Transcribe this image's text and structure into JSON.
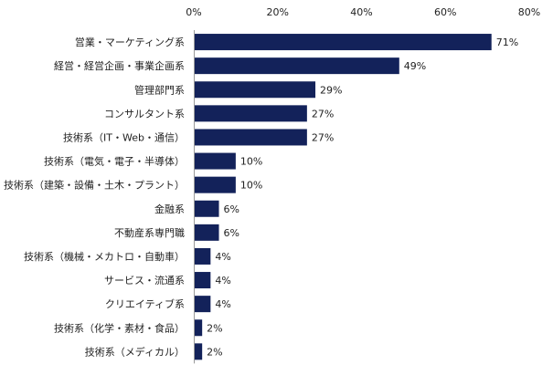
{
  "chart_data": {
    "type": "bar",
    "orientation": "horizontal",
    "title": "",
    "xlabel": "",
    "ylabel": "",
    "xlim": [
      0,
      80
    ],
    "ticks": [
      0,
      20,
      40,
      60,
      80
    ],
    "tick_labels": [
      "0%",
      "20%",
      "40%",
      "60%",
      "80%"
    ],
    "grid": false,
    "legend": "none",
    "bar_color": "#13225a",
    "categories": [
      "営業・マーケティング系",
      "経営・経営企画・事業企画系",
      "管理部門系",
      "コンサルタント系",
      "技術系（IT・Web・通信）",
      "技術系（電気・電子・半導体）",
      "技術系（建築・設備・土木・プラント）",
      "金融系",
      "不動産系専門職",
      "技術系（機械・メカトロ・自動車）",
      "サービス・流通系",
      "クリエイティブ系",
      "技術系（化学・素材・食品）",
      "技術系（メディカル）"
    ],
    "values": [
      71,
      49,
      29,
      27,
      27,
      10,
      10,
      6,
      6,
      4,
      4,
      4,
      2,
      2
    ],
    "value_labels": [
      "71%",
      "49%",
      "29%",
      "27%",
      "27%",
      "10%",
      "10%",
      "6%",
      "6%",
      "4%",
      "4%",
      "4%",
      "2%",
      "2%"
    ]
  }
}
